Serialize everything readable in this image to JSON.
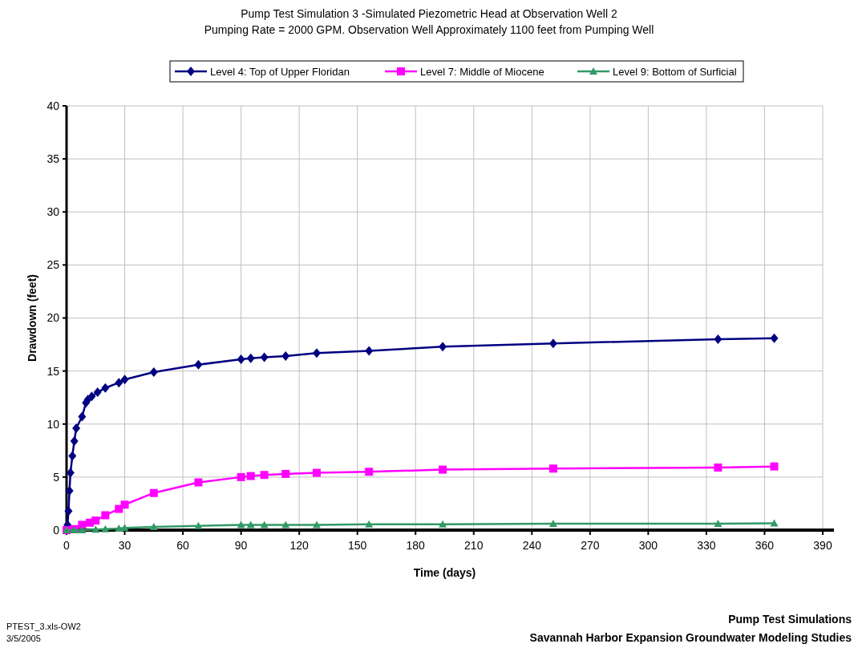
{
  "chart_data": {
    "type": "line",
    "title": "Pump Test Simulation 3 -Simulated Piezometric Head at Observation Well 2",
    "subtitle": "Pumping Rate = 2000 GPM. Observation Well Approximately 1100 feet from Pumping Well",
    "xlabel": "Time (days)",
    "ylabel": "Drawdown (feet)",
    "xlim": [
      0,
      390
    ],
    "xticks": [
      0,
      30,
      60,
      90,
      120,
      150,
      180,
      210,
      240,
      270,
      300,
      330,
      360,
      390
    ],
    "ylim": [
      0,
      40
    ],
    "yticks": [
      0,
      5,
      10,
      15,
      20,
      25,
      30,
      35,
      40
    ],
    "grid": true,
    "legend": "top",
    "series": [
      {
        "name": "Level 4: Top of Upper Floridan",
        "color": "#000080",
        "marker": "diamond",
        "x": [
          0,
          0.5,
          1,
          1.5,
          2,
          3,
          4,
          5,
          8,
          10,
          11,
          13,
          16,
          20,
          27,
          30,
          45,
          68,
          90,
          95,
          102,
          113,
          129,
          156,
          194,
          251,
          336,
          365
        ],
        "values": [
          0,
          0.5,
          1.8,
          3.7,
          5.4,
          7,
          8.4,
          9.6,
          10.7,
          12,
          12.3,
          12.6,
          13,
          13.4,
          13.9,
          14.2,
          14.9,
          15.6,
          16.1,
          16.2,
          16.3,
          16.4,
          16.7,
          16.9,
          17.3,
          17.6,
          18,
          18.1
        ]
      },
      {
        "name": "Level 7: Middle of Miocene",
        "color": "#ff00ff",
        "marker": "square",
        "x": [
          0,
          4,
          8,
          12,
          15,
          20,
          27,
          30,
          45,
          68,
          90,
          95,
          102,
          113,
          129,
          156,
          194,
          251,
          336,
          365
        ],
        "values": [
          0,
          0.1,
          0.5,
          0.7,
          0.9,
          1.4,
          2,
          2.4,
          3.5,
          4.5,
          5,
          5.1,
          5.2,
          5.3,
          5.4,
          5.5,
          5.7,
          5.8,
          5.9,
          6
        ]
      },
      {
        "name": "Level 9: Bottom of Surficial",
        "color": "#339966",
        "marker": "triangle",
        "x": [
          0,
          4,
          8,
          15,
          20,
          27,
          30,
          45,
          68,
          90,
          95,
          102,
          113,
          129,
          156,
          194,
          251,
          336,
          365
        ],
        "values": [
          0,
          0,
          0,
          0.05,
          0.1,
          0.15,
          0.2,
          0.3,
          0.4,
          0.5,
          0.5,
          0.5,
          0.5,
          0.5,
          0.55,
          0.55,
          0.6,
          0.6,
          0.65
        ]
      }
    ],
    "annotations": [
      "PTEST_3.xls-OW2",
      "3/5/2005",
      "Pump Test Simulations",
      "Savannah Harbor Expansion Groundwater Modeling Studies"
    ]
  }
}
